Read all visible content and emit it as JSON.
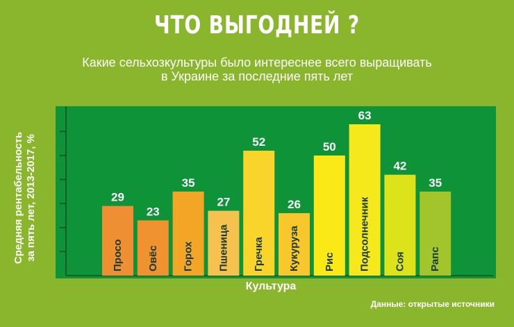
{
  "header": {
    "title": "ЧТО ВЫГОДНЕЙ ?",
    "subtitle_line1": "Какие сельхозкультуры было интереснее всего выращивать",
    "subtitle_line2": "в Украине за последние пять лет"
  },
  "footer": {
    "source": "Данные: открытые источники"
  },
  "chart_data": {
    "type": "bar",
    "categories": [
      "Просо",
      "Овёс",
      "Горох",
      "Пшеница",
      "Гречка",
      "Кукуруза",
      "Рис",
      "Подсолнечник",
      "Соя",
      "Рапс"
    ],
    "values": [
      29,
      23,
      35,
      27,
      52,
      26,
      50,
      63,
      42,
      35
    ],
    "colors": [
      "#ef8f34",
      "#f0922f",
      "#f3a625",
      "#f5c24f",
      "#f9d52b",
      "#f8c72c",
      "#fbe917",
      "#f5e91c",
      "#dde31b",
      "#a2c52c"
    ],
    "label_colors": [
      "#ffffff",
      "#ffffff",
      "#ffffff",
      "#ffffff",
      "#ffffff",
      "#ffffff",
      "#ffffff",
      "#ffffff",
      "#ffffff",
      "#ffffff"
    ],
    "title": "ЧТО ВЫГОДНЕЙ ?",
    "xlabel": "Культура",
    "ylabel_line1": "Средняя рентабельность",
    "ylabel_line2": "за пять лет, 2013-2017, %",
    "ylim": [
      0,
      70
    ],
    "yticks": [
      10,
      20,
      30,
      40,
      50,
      60
    ],
    "plot_background": "#0f9338",
    "grid": false
  }
}
